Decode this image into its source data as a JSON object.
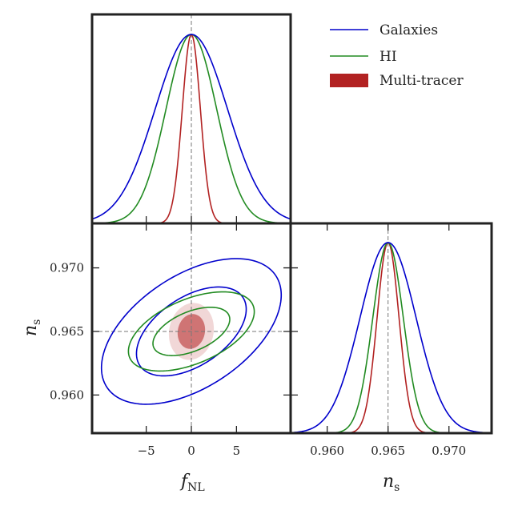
{
  "chart_data": {
    "type": "triangle-corner-plot",
    "parameters": [
      {
        "name": "f_NL",
        "label_main": "f",
        "label_sub": "NL",
        "fiducial": 0,
        "range": [
          -11,
          11
        ],
        "ticks": [
          -5,
          0,
          5
        ],
        "tick_labels": [
          "−5",
          "0",
          "5"
        ]
      },
      {
        "name": "n_s",
        "label_main": "n",
        "label_sub": "s",
        "fiducial": 0.965,
        "range": [
          0.957,
          0.9735
        ],
        "ticks": [
          0.96,
          0.965,
          0.97
        ],
        "tick_labels": [
          "0.960",
          "0.965",
          "0.970"
        ]
      }
    ],
    "series": [
      {
        "name": "Galaxies",
        "label": "Galaxies",
        "color": "#0000cc",
        "style": "line",
        "sigma_fnl": 4.0,
        "sigma_ns": 0.0023,
        "corr": 0.5
      },
      {
        "name": "HI",
        "label": "HI",
        "color": "#228b22",
        "style": "line",
        "sigma_fnl": 2.8,
        "sigma_ns": 0.00125,
        "corr": 0.5
      },
      {
        "name": "Multi-tracer",
        "label": "Multi-tracer",
        "color": "#b22222",
        "style": "filled",
        "sigma_fnl": 1.0,
        "sigma_ns": 0.0009,
        "corr": 0.1
      }
    ],
    "contour_levels": [
      "1-sigma",
      "2-sigma"
    ],
    "legend_position": "top-right"
  }
}
